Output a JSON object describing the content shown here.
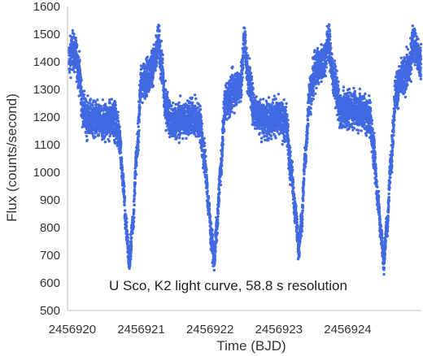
{
  "chart_data": {
    "type": "scatter",
    "title": "",
    "xlabel": "Time (BJD)",
    "ylabel": "Flux (counts/second)",
    "annotation": "U Sco, K2 light curve, 58.8 s resolution",
    "xlim": [
      2456919.93,
      2456925.07
    ],
    "ylim": [
      500,
      1600
    ],
    "x_ticks": [
      2456920,
      2456921,
      2456922,
      2456923,
      2456924
    ],
    "y_ticks": [
      500,
      600,
      700,
      800,
      900,
      1000,
      1100,
      1200,
      1300,
      1400,
      1500,
      1600
    ],
    "grid": false,
    "legend": "none",
    "marker_color": "#4169E1",
    "orbital_period_days": 1.2305,
    "eclipse_times": [
      2456920.83,
      2456922.06,
      2456923.29,
      2456924.52
    ],
    "series": [
      {
        "values": [
          [
            2456919.95,
            1410
          ],
          [
            2456920.0,
            1440
          ],
          [
            2456920.05,
            1420
          ],
          [
            2456920.1,
            1360
          ],
          [
            2456920.15,
            1230
          ],
          [
            2456920.2,
            1195
          ],
          [
            2456920.3,
            1190
          ],
          [
            2456920.4,
            1180
          ],
          [
            2456920.5,
            1185
          ],
          [
            2456920.6,
            1195
          ],
          [
            2456920.68,
            1140
          ],
          [
            2456920.74,
            960
          ],
          [
            2456920.78,
            800
          ],
          [
            2456920.83,
            680
          ],
          [
            2456920.88,
            820
          ],
          [
            2456920.93,
            1050
          ],
          [
            2456921.0,
            1320
          ],
          [
            2456921.1,
            1350
          ],
          [
            2456921.2,
            1400
          ],
          [
            2456921.25,
            1470
          ],
          [
            2456921.3,
            1380
          ],
          [
            2456921.35,
            1240
          ],
          [
            2456921.45,
            1180
          ],
          [
            2456921.6,
            1190
          ],
          [
            2456921.75,
            1200
          ],
          [
            2456921.85,
            1180
          ],
          [
            2456921.92,
            1050
          ],
          [
            2456921.98,
            880
          ],
          [
            2456922.02,
            760
          ],
          [
            2456922.06,
            690
          ],
          [
            2456922.1,
            800
          ],
          [
            2456922.15,
            1000
          ],
          [
            2456922.22,
            1250
          ],
          [
            2456922.35,
            1300
          ],
          [
            2456922.45,
            1320
          ],
          [
            2456922.5,
            1480
          ],
          [
            2456922.55,
            1350
          ],
          [
            2456922.65,
            1220
          ],
          [
            2456922.8,
            1190
          ],
          [
            2456922.95,
            1200
          ],
          [
            2456923.1,
            1180
          ],
          [
            2456923.18,
            1010
          ],
          [
            2456923.24,
            850
          ],
          [
            2456923.29,
            730
          ],
          [
            2456923.33,
            820
          ],
          [
            2456923.38,
            1050
          ],
          [
            2456923.45,
            1290
          ],
          [
            2456923.55,
            1380
          ],
          [
            2456923.65,
            1400
          ],
          [
            2456923.72,
            1470
          ],
          [
            2456923.8,
            1330
          ],
          [
            2456923.9,
            1220
          ],
          [
            2456924.05,
            1230
          ],
          [
            2456924.2,
            1220
          ],
          [
            2456924.32,
            1200
          ],
          [
            2456924.38,
            1080
          ],
          [
            2456924.44,
            900
          ],
          [
            2456924.49,
            770
          ],
          [
            2456924.52,
            680
          ],
          [
            2456924.57,
            800
          ],
          [
            2456924.63,
            1050
          ],
          [
            2456924.7,
            1300
          ],
          [
            2456924.8,
            1340
          ],
          [
            2456924.9,
            1380
          ],
          [
            2456924.95,
            1470
          ],
          [
            2456925.05,
            1400
          ]
        ]
      }
    ]
  }
}
